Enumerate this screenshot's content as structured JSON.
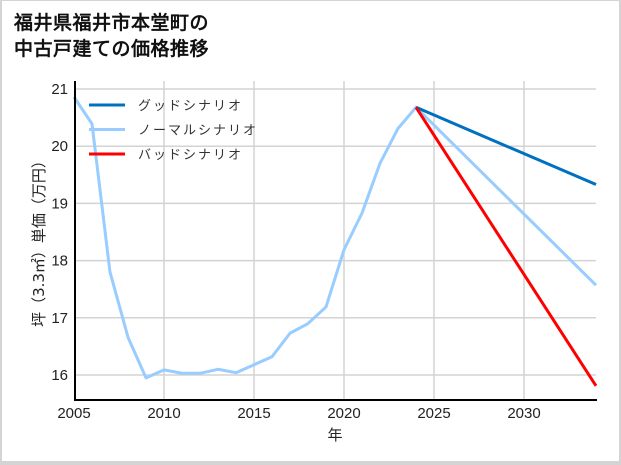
{
  "title_lines": [
    "福井県福井市本堂町の",
    "中古戸建ての価格推移"
  ],
  "chart_data": {
    "type": "line",
    "title": "福井県福井市本堂町の中古戸建ての価格推移",
    "xlabel": "年",
    "ylabel": "坪（3.3㎡）単価（万円）",
    "xlim": [
      2005,
      2034
    ],
    "ylim": [
      15.6,
      21.1
    ],
    "xticks": [
      2005,
      2010,
      2015,
      2020,
      2025,
      2030
    ],
    "yticks": [
      16,
      17,
      18,
      19,
      20,
      21
    ],
    "grid": true,
    "legend_position": "upper left",
    "series": [
      {
        "name": "グッドシナリオ",
        "color": "#0070c0",
        "x": [
          2024,
          2034
        ],
        "y": [
          20.68,
          19.33
        ]
      },
      {
        "name": "ノーマルシナリオ",
        "color": "#99ccff",
        "x": [
          2005,
          2006,
          2007,
          2008,
          2009,
          2010,
          2011,
          2012,
          2013,
          2014,
          2015,
          2016,
          2017,
          2018,
          2019,
          2020,
          2021,
          2022,
          2023,
          2024,
          2034
        ],
        "y": [
          20.86,
          20.39,
          17.8,
          16.66,
          15.95,
          16.09,
          16.03,
          16.03,
          16.1,
          16.04,
          16.18,
          16.32,
          16.73,
          16.9,
          17.19,
          18.19,
          18.83,
          19.7,
          20.31,
          20.68,
          17.57
        ]
      },
      {
        "name": "バッドシナリオ",
        "color": "#ff0000",
        "x": [
          2024,
          2034
        ],
        "y": [
          20.68,
          15.81
        ]
      }
    ]
  }
}
